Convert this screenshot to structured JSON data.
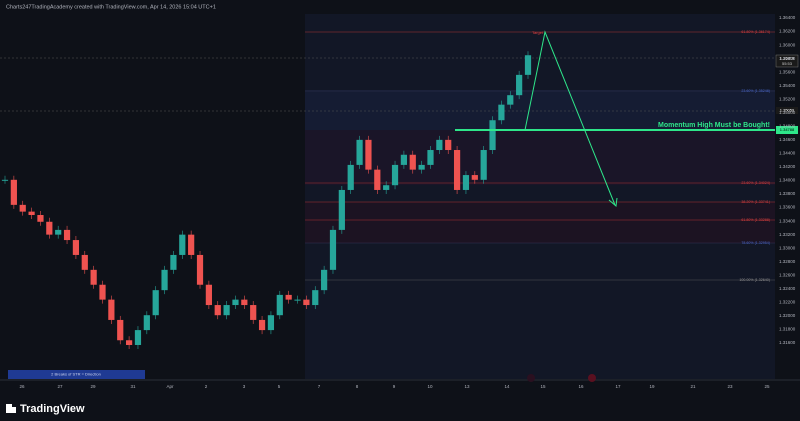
{
  "header": {
    "caption": "Charts247TradingAcademy created with TradingView.com, Apr 14, 2026 15:04 UTC+1"
  },
  "price_axis": {
    "labels": [
      "1.36400",
      "1.36200",
      "1.36000",
      "1.35800",
      "1.35600",
      "1.35400",
      "1.35200",
      "1.35000",
      "1.34800",
      "1.34600",
      "1.34400",
      "1.34200",
      "1.34000",
      "1.33800",
      "1.33600",
      "1.33400",
      "1.33200",
      "1.33000",
      "1.32800",
      "1.32600",
      "1.32400",
      "1.32200",
      "1.32000",
      "1.31800",
      "1.31600"
    ],
    "current_price": "1.35816",
    "countdown": "55:53",
    "level_price": "1.34788",
    "mid_price": "1.35059"
  },
  "date_axis": {
    "labels": [
      "26",
      "27",
      "29",
      "31",
      "Apr",
      "2",
      "3",
      "5",
      "7",
      "8",
      "9",
      "10",
      "13",
      "14",
      "15",
      "16",
      "17",
      "19",
      "21",
      "23",
      "25"
    ]
  },
  "fib_levels": [
    "61.80% (1.36174)",
    "23.60% (1.35248)",
    "23.60% (1.34024)",
    "38.20% (1.33741)",
    "61.80% (1.33288)",
    "78.60% (1.32954)",
    "100.00% (1.32640)"
  ],
  "annotations": {
    "target": "Target",
    "momentum": "Momentum High Must be Bought!",
    "note": "2 Breaks of STR = Direction"
  },
  "price_series": {
    "closes": [
      1.3401,
      1.3364,
      1.3354,
      1.3349,
      1.3339,
      1.332,
      1.3327,
      1.3312,
      1.329,
      1.3268,
      1.3246,
      1.3224,
      1.3194,
      1.3164,
      1.3157,
      1.3179,
      1.3201,
      1.3238,
      1.3268,
      1.329,
      1.332,
      1.329,
      1.3246,
      1.3216,
      1.3201,
      1.3216,
      1.3224,
      1.3216,
      1.3194,
      1.3179,
      1.3201,
      1.3231,
      1.3224,
      1.3224,
      1.3216,
      1.3238,
      1.3268,
      1.3327,
      1.3386,
      1.3423,
      1.346,
      1.3416,
      1.3386,
      1.3393,
      1.3423,
      1.3438,
      1.3416,
      1.3423,
      1.3445,
      1.346,
      1.3445,
      1.3386,
      1.3408,
      1.3401,
      1.3445,
      1.3489,
      1.3512,
      1.3526,
      1.3556,
      1.3585
    ]
  },
  "footer": {
    "brand": "TradingView"
  }
}
